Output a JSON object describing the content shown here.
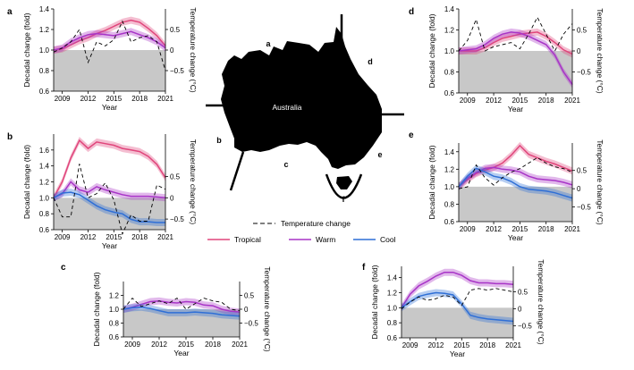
{
  "figure": {
    "map_label": "Australia",
    "legend": {
      "temperature": "Temperature change",
      "tropical": "Tropical",
      "warm": "Warm",
      "cool": "Cool"
    }
  },
  "colors": {
    "tropical": "#e0457b",
    "warm": "#a834c7",
    "cool": "#2f6fd6",
    "shade": "#c8c8c8",
    "temperature": "#000000"
  },
  "chart_data": [
    {
      "panel": "a",
      "type": "line",
      "xlabel": "Year",
      "ylabel": "Decadal change (fold)",
      "y2label": "Temperature change (°C)",
      "x": [
        2008,
        2009,
        2010,
        2011,
        2012,
        2013,
        2014,
        2015,
        2016,
        2017,
        2018,
        2019,
        2020,
        2021
      ],
      "xticks": [
        2009,
        2012,
        2015,
        2018,
        2021
      ],
      "ylim": [
        0.6,
        1.4
      ],
      "yticks": [
        0.6,
        0.8,
        1.0,
        1.2,
        1.4
      ],
      "y2lim": [
        -1.0,
        1.0
      ],
      "y2ticks": [
        0.5,
        0,
        -0.5
      ],
      "series": [
        {
          "name": "Tropical",
          "values": [
            1.0,
            1.01,
            1.05,
            1.09,
            1.12,
            1.16,
            1.19,
            1.23,
            1.27,
            1.29,
            1.27,
            1.21,
            1.14,
            1.04
          ]
        },
        {
          "name": "Warm",
          "values": [
            1.0,
            1.02,
            1.08,
            1.12,
            1.15,
            1.16,
            1.15,
            1.14,
            1.16,
            1.18,
            1.15,
            1.12,
            1.08,
            1.02
          ]
        },
        {
          "name": "Temperature change",
          "values": [
            -0.05,
            0.05,
            0.2,
            0.5,
            -0.3,
            0.2,
            0.1,
            0.25,
            0.7,
            0.2,
            0.3,
            0.35,
            0.2,
            -0.5
          ]
        }
      ]
    },
    {
      "panel": "b",
      "type": "line",
      "xlabel": "Year",
      "ylabel": "Decadal change (fold)",
      "y2label": "Temperature change (°C)",
      "x": [
        2008,
        2009,
        2010,
        2011,
        2012,
        2013,
        2014,
        2015,
        2016,
        2017,
        2018,
        2019,
        2020,
        2021
      ],
      "xticks": [
        2009,
        2012,
        2015,
        2018,
        2021
      ],
      "ylim": [
        0.6,
        1.8
      ],
      "yticks": [
        0.6,
        0.8,
        1.0,
        1.2,
        1.4,
        1.6
      ],
      "y2lim": [
        -0.75,
        1.5
      ],
      "y2ticks": [
        0.5,
        0,
        -0.5
      ],
      "series": [
        {
          "name": "Tropical",
          "values": [
            1.0,
            1.2,
            1.5,
            1.72,
            1.62,
            1.7,
            1.68,
            1.66,
            1.62,
            1.6,
            1.58,
            1.52,
            1.42,
            1.25
          ]
        },
        {
          "name": "Warm",
          "values": [
            1.0,
            1.05,
            1.2,
            1.1,
            1.07,
            1.14,
            1.1,
            1.07,
            1.04,
            1.02,
            1.02,
            1.02,
            1.01,
            1.0
          ]
        },
        {
          "name": "Cool",
          "values": [
            1.0,
            1.06,
            1.07,
            1.04,
            0.97,
            0.9,
            0.85,
            0.82,
            0.8,
            0.73,
            0.7,
            0.7,
            0.69,
            0.69
          ]
        },
        {
          "name": "Temperature change",
          "values": [
            0,
            -0.45,
            -0.45,
            0.8,
            0.0,
            0.1,
            0.35,
            -0.05,
            -0.85,
            -0.4,
            -0.55,
            -0.55,
            0.3,
            0.2
          ]
        }
      ]
    },
    {
      "panel": "c",
      "type": "line",
      "xlabel": "Year",
      "ylabel": "Decadal change (fold)",
      "y2label": "Temperature change (°C)",
      "x": [
        2008,
        2009,
        2010,
        2011,
        2012,
        2013,
        2014,
        2015,
        2016,
        2017,
        2018,
        2019,
        2020,
        2021
      ],
      "xticks": [
        2009,
        2012,
        2015,
        2018,
        2021
      ],
      "ylim": [
        0.6,
        1.4
      ],
      "yticks": [
        0.6,
        0.8,
        1.0,
        1.2
      ],
      "y2lim": [
        -1.0,
        1.0
      ],
      "y2ticks": [
        0.5,
        0,
        -0.5
      ],
      "series": [
        {
          "name": "Warm",
          "values": [
            1.0,
            1.03,
            1.07,
            1.11,
            1.12,
            1.1,
            1.09,
            1.11,
            1.1,
            1.06,
            1.05,
            1.0,
            0.97,
            0.96
          ]
        },
        {
          "name": "Cool",
          "values": [
            1.0,
            1.02,
            1.03,
            1.01,
            0.98,
            0.95,
            0.95,
            0.95,
            0.96,
            0.95,
            0.94,
            0.92,
            0.91,
            0.9
          ]
        },
        {
          "name": "Temperature change",
          "values": [
            0,
            0.4,
            0.1,
            0.2,
            0.3,
            0.2,
            0.4,
            0.0,
            0.2,
            0.4,
            0.3,
            0.25,
            0.0,
            -0.05
          ]
        }
      ]
    },
    {
      "panel": "d",
      "type": "line",
      "xlabel": "Year",
      "ylabel": "Decadal change (fold)",
      "y2label": "Temperature change (°C)",
      "x": [
        2008,
        2009,
        2010,
        2011,
        2012,
        2013,
        2014,
        2015,
        2016,
        2017,
        2018,
        2019,
        2020,
        2021
      ],
      "xticks": [
        2009,
        2012,
        2015,
        2018,
        2021
      ],
      "ylim": [
        0.6,
        1.4
      ],
      "yticks": [
        0.6,
        0.8,
        1.0,
        1.2,
        1.4
      ],
      "y2lim": [
        -1.0,
        1.0
      ],
      "y2ticks": [
        0.5,
        0,
        -0.5
      ],
      "series": [
        {
          "name": "Tropical",
          "values": [
            1.0,
            1.0,
            1.0,
            1.03,
            1.08,
            1.12,
            1.14,
            1.16,
            1.17,
            1.18,
            1.14,
            1.08,
            1.01,
            0.97
          ]
        },
        {
          "name": "Warm",
          "values": [
            1.0,
            1.01,
            1.02,
            1.06,
            1.12,
            1.16,
            1.18,
            1.17,
            1.14,
            1.1,
            1.06,
            0.96,
            0.8,
            0.68
          ]
        },
        {
          "name": "Temperature change",
          "values": [
            0,
            0.25,
            0.75,
            0.0,
            0.1,
            0.15,
            0.2,
            0.05,
            0.4,
            0.8,
            0.4,
            0.0,
            0.4,
            0.65
          ]
        }
      ]
    },
    {
      "panel": "e",
      "type": "line",
      "xlabel": "Year",
      "ylabel": "Decadal change (fold)",
      "y2label": "Temperature change (°C)",
      "x": [
        2008,
        2009,
        2010,
        2011,
        2012,
        2013,
        2014,
        2015,
        2016,
        2017,
        2018,
        2019,
        2020,
        2021
      ],
      "xticks": [
        2009,
        2012,
        2015,
        2018,
        2021
      ],
      "ylim": [
        0.6,
        1.5
      ],
      "yticks": [
        0.6,
        0.8,
        1.0,
        1.2,
        1.4
      ],
      "y2lim": [
        -0.9,
        1.25
      ],
      "y2ticks": [
        0.5,
        0,
        -0.5
      ],
      "series": [
        {
          "name": "Tropical",
          "values": [
            1.0,
            1.08,
            1.15,
            1.19,
            1.22,
            1.27,
            1.36,
            1.47,
            1.37,
            1.33,
            1.29,
            1.26,
            1.22,
            1.18
          ]
        },
        {
          "name": "Warm",
          "values": [
            1.0,
            1.1,
            1.16,
            1.21,
            1.22,
            1.2,
            1.19,
            1.17,
            1.12,
            1.09,
            1.08,
            1.07,
            1.05,
            1.02
          ]
        },
        {
          "name": "Cool",
          "values": [
            1.0,
            1.12,
            1.21,
            1.17,
            1.12,
            1.1,
            1.06,
            1.0,
            0.97,
            0.96,
            0.95,
            0.93,
            0.9,
            0.87
          ]
        },
        {
          "name": "Temperature change",
          "values": [
            0,
            0.05,
            0.65,
            0.3,
            0.1,
            0.3,
            0.45,
            0.55,
            0.7,
            0.85,
            0.7,
            0.6,
            0.55,
            0.45
          ]
        }
      ]
    },
    {
      "panel": "f",
      "type": "line",
      "xlabel": "Year",
      "ylabel": "Decadal change (fold)",
      "y2label": "Temperature change (°C)",
      "x": [
        2008,
        2009,
        2010,
        2011,
        2012,
        2013,
        2014,
        2015,
        2016,
        2017,
        2018,
        2019,
        2020,
        2021
      ],
      "xticks": [
        2009,
        2012,
        2015,
        2018,
        2021
      ],
      "ylim": [
        0.6,
        1.55
      ],
      "yticks": [
        0.6,
        0.8,
        1.0,
        1.2,
        1.4
      ],
      "y2lim": [
        -0.85,
        1.25
      ],
      "y2ticks": [
        0.5,
        0,
        -0.5
      ],
      "series": [
        {
          "name": "Warm",
          "values": [
            1.0,
            1.18,
            1.29,
            1.35,
            1.42,
            1.47,
            1.47,
            1.43,
            1.36,
            1.33,
            1.33,
            1.32,
            1.32,
            1.31
          ]
        },
        {
          "name": "Cool",
          "values": [
            1.0,
            1.08,
            1.15,
            1.18,
            1.2,
            1.19,
            1.17,
            1.05,
            0.9,
            0.87,
            0.85,
            0.84,
            0.83,
            0.82
          ]
        },
        {
          "name": "Temperature change",
          "values": [
            0,
            0.2,
            0.35,
            0.25,
            0.3,
            0.4,
            0.35,
            0.1,
            0.55,
            0.6,
            0.55,
            0.6,
            0.55,
            0.5
          ]
        }
      ]
    }
  ]
}
